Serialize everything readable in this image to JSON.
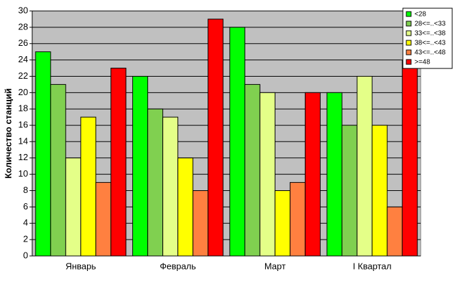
{
  "chart_data": {
    "type": "bar",
    "y_label": "Количество станций",
    "categories": [
      "Январь",
      "Февраль",
      "Март",
      "I Квартал"
    ],
    "series": [
      {
        "name": "<28",
        "color": "#00ff00",
        "values": [
          25,
          22,
          28,
          20
        ]
      },
      {
        "name": "28<=..<33",
        "color": "#80d050",
        "values": [
          21,
          18,
          21,
          16
        ]
      },
      {
        "name": "33<=..<38",
        "color": "#e4ff88",
        "values": [
          12,
          17,
          20,
          22
        ]
      },
      {
        "name": "38<=..<43",
        "color": "#ffff00",
        "values": [
          17,
          12,
          8,
          16
        ]
      },
      {
        "name": "43<=..<48",
        "color": "#ff8040",
        "values": [
          9,
          8,
          9,
          6
        ]
      },
      {
        "name": ">=48",
        "color": "#ff0000",
        "values": [
          23,
          29,
          20,
          24
        ]
      }
    ],
    "ylim": [
      0,
      30
    ],
    "yticks": [
      0,
      2,
      4,
      6,
      8,
      10,
      12,
      14,
      16,
      18,
      20,
      22,
      24,
      26,
      28,
      30
    ],
    "grid": true
  }
}
